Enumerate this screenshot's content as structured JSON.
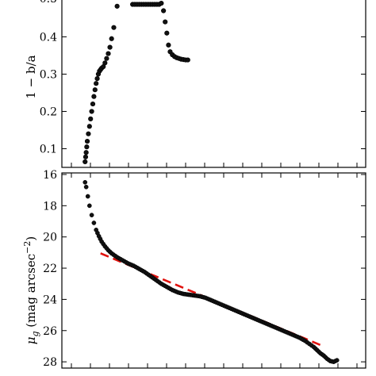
{
  "chart_data": [
    {
      "type": "scatter",
      "panel": "top",
      "ylabel": "1 − b/a",
      "ylim": [
        0.05,
        0.52
      ],
      "yticks": [
        0.1,
        0.2,
        0.3,
        0.4
      ],
      "ytick_labels": [
        "0.1",
        "0.2",
        "0.3",
        "0.4"
      ],
      "clipped_top_label": "0.5",
      "grid": false,
      "marker_color": "#111111",
      "x": [
        0.1,
        0.15,
        0.2,
        0.25,
        0.3,
        0.4,
        0.5,
        0.6,
        0.7,
        0.8,
        0.9,
        1.0,
        1.1,
        1.2,
        1.3,
        1.4,
        1.5,
        1.6,
        1.75,
        1.9,
        2.05,
        2.2,
        2.35,
        2.5,
        2.7,
        3.0,
        3.5,
        4.0,
        4.4,
        4.6,
        4.8,
        5.0,
        5.2,
        5.4,
        5.6,
        5.8,
        6.0,
        6.2,
        6.4,
        6.6,
        6.8,
        7.0,
        7.2,
        7.35,
        7.5,
        7.65,
        7.8,
        8.0,
        8.2,
        8.4,
        8.6,
        8.8,
        9.0,
        9.2,
        9.4
      ],
      "y": [
        0.065,
        0.078,
        0.09,
        0.105,
        0.12,
        0.14,
        0.16,
        0.18,
        0.2,
        0.22,
        0.24,
        0.258,
        0.275,
        0.288,
        0.3,
        0.308,
        0.312,
        0.316,
        0.32,
        0.33,
        0.342,
        0.355,
        0.372,
        0.395,
        0.425,
        0.482,
        0.5,
        0.5,
        0.487,
        0.487,
        0.487,
        0.487,
        0.487,
        0.487,
        0.487,
        0.487,
        0.487,
        0.487,
        0.487,
        0.487,
        0.487,
        0.49,
        0.47,
        0.44,
        0.41,
        0.378,
        0.36,
        0.352,
        0.347,
        0.344,
        0.342,
        0.34,
        0.339,
        0.338,
        0.338
      ]
    },
    {
      "type": "line",
      "panel": "bottom",
      "ylabel": "μ_g (mag arcsec^−2)",
      "ylim": [
        28.4,
        15.9
      ],
      "y_inverted": true,
      "yticks": [
        16,
        18,
        20,
        22,
        24,
        26,
        28
      ],
      "ytick_labels": [
        "16",
        "18",
        "20",
        "22",
        "24",
        "26",
        "28"
      ],
      "grid": false,
      "series": [
        {
          "style": "dots",
          "color": "#111111",
          "x": [
            0.1,
            0.2,
            0.35,
            0.5,
            0.7,
            0.9,
            1.1,
            1.35,
            1.6,
            1.9,
            2.2,
            2.5,
            3.0,
            3.5,
            4.0,
            4.5,
            5.0,
            5.5,
            6.0,
            6.5,
            7.0,
            7.5,
            8.0,
            8.5,
            9.0,
            9.5,
            10.0,
            10.5,
            11.0,
            11.5,
            12.0,
            12.5,
            13.0,
            13.5,
            14.0,
            14.5,
            15.0,
            15.5,
            16.0,
            16.5,
            17.0,
            17.5,
            18.0,
            18.5,
            19.0,
            19.5,
            20.0,
            20.4,
            20.8,
            21.1,
            21.4,
            21.7,
            22.0,
            22.3,
            22.6,
            22.9
          ],
          "y": [
            16.5,
            16.8,
            17.4,
            18.0,
            18.6,
            19.1,
            19.55,
            19.95,
            20.3,
            20.6,
            20.85,
            21.05,
            21.3,
            21.5,
            21.7,
            21.85,
            22.05,
            22.25,
            22.5,
            22.75,
            23.0,
            23.2,
            23.4,
            23.55,
            23.65,
            23.7,
            23.75,
            23.8,
            23.9,
            24.05,
            24.2,
            24.35,
            24.5,
            24.65,
            24.8,
            24.95,
            25.1,
            25.25,
            25.4,
            25.55,
            25.7,
            25.85,
            26.0,
            26.15,
            26.3,
            26.45,
            26.65,
            26.85,
            27.05,
            27.25,
            27.45,
            27.6,
            27.8,
            27.95,
            28.0,
            27.9
          ]
        },
        {
          "style": "dashed",
          "color": "#e0120e",
          "x": [
            1.5,
            21.5
          ],
          "y": [
            21.05,
            26.95
          ]
        }
      ]
    }
  ]
}
